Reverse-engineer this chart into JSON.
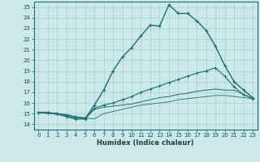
{
  "xlabel": "Humidex (Indice chaleur)",
  "bg_color": "#cce8e8",
  "grid_color": "#aacfcf",
  "line_color": "#1a7070",
  "xlim": [
    -0.5,
    23.5
  ],
  "ylim": [
    13.5,
    25.5
  ],
  "yticks": [
    14,
    15,
    16,
    17,
    18,
    19,
    20,
    21,
    22,
    23,
    24,
    25
  ],
  "xticks": [
    0,
    1,
    2,
    3,
    4,
    5,
    6,
    7,
    8,
    9,
    10,
    11,
    12,
    13,
    14,
    15,
    16,
    17,
    18,
    19,
    20,
    21,
    22,
    23
  ],
  "line1_x": [
    0,
    1,
    2,
    3,
    4,
    5,
    6,
    7,
    8,
    9,
    10,
    11,
    12,
    13,
    14,
    15,
    16,
    17,
    18,
    19,
    20,
    21,
    22,
    23
  ],
  "line1_y": [
    15.1,
    15.1,
    15.0,
    14.7,
    14.5,
    14.5,
    15.8,
    17.2,
    19.0,
    20.3,
    21.2,
    22.3,
    23.3,
    23.2,
    25.2,
    24.4,
    24.4,
    23.7,
    22.8,
    21.3,
    19.5,
    18.0,
    17.2,
    16.5
  ],
  "line2_x": [
    0,
    1,
    2,
    3,
    4,
    5,
    6,
    7,
    8,
    9,
    10,
    11,
    12,
    13,
    14,
    15,
    16,
    17,
    18,
    19,
    20,
    21,
    22,
    23
  ],
  "line2_y": [
    15.1,
    15.1,
    15.0,
    14.9,
    14.7,
    14.6,
    15.5,
    15.8,
    16.0,
    16.3,
    16.6,
    17.0,
    17.3,
    17.6,
    17.9,
    18.2,
    18.5,
    18.8,
    19.0,
    19.3,
    18.5,
    17.5,
    16.8,
    16.4
  ],
  "line3_x": [
    0,
    1,
    2,
    3,
    4,
    5,
    6,
    7,
    8,
    9,
    10,
    11,
    12,
    13,
    14,
    15,
    16,
    17,
    18,
    19,
    20,
    21,
    22,
    23
  ],
  "line3_y": [
    15.1,
    15.1,
    14.9,
    14.8,
    14.6,
    14.5,
    15.4,
    15.6,
    15.7,
    15.8,
    15.9,
    16.1,
    16.3,
    16.5,
    16.6,
    16.8,
    16.9,
    17.1,
    17.2,
    17.3,
    17.2,
    17.2,
    16.8,
    16.4
  ],
  "line4_x": [
    0,
    1,
    2,
    3,
    4,
    5,
    6,
    7,
    8,
    9,
    10,
    11,
    12,
    13,
    14,
    15,
    16,
    17,
    18,
    19,
    20,
    21,
    22,
    23
  ],
  "line4_y": [
    15.1,
    15.0,
    15.0,
    14.9,
    14.7,
    14.6,
    14.5,
    15.0,
    15.2,
    15.4,
    15.6,
    15.8,
    15.9,
    16.0,
    16.1,
    16.3,
    16.4,
    16.5,
    16.6,
    16.7,
    16.7,
    16.6,
    16.5,
    16.4
  ]
}
